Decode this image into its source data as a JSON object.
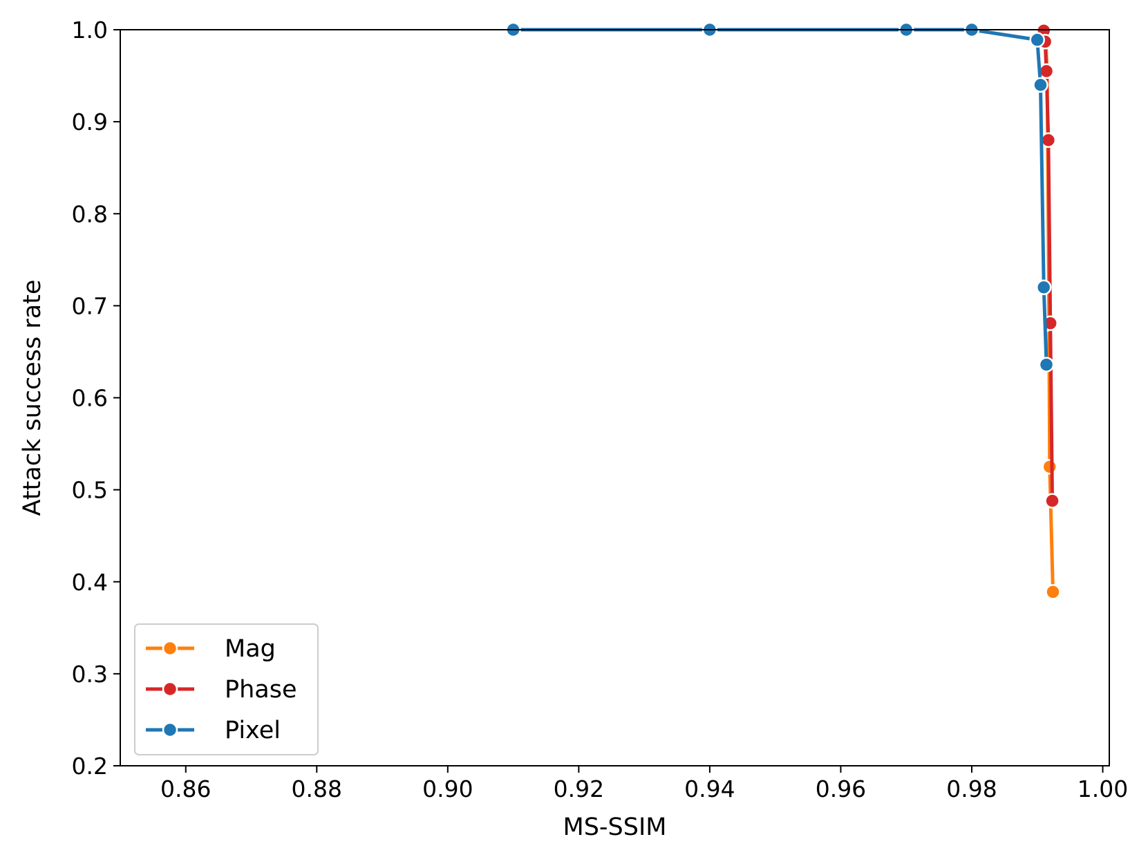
{
  "chart_data": {
    "type": "line",
    "title": "",
    "xlabel": "MS-SSIM",
    "ylabel": "Attack success rate",
    "xlim": [
      0.85,
      1.001
    ],
    "ylim": [
      0.2,
      1.0
    ],
    "xticks": [
      0.86,
      0.88,
      0.9,
      0.92,
      0.94,
      0.96,
      0.98,
      1.0
    ],
    "xtick_labels": [
      "0.86",
      "0.88",
      "0.90",
      "0.92",
      "0.94",
      "0.96",
      "0.98",
      "1.00"
    ],
    "yticks": [
      0.2,
      0.3,
      0.4,
      0.5,
      0.6,
      0.7,
      0.8,
      0.9,
      1.0
    ],
    "ytick_labels": [
      "0.2",
      "0.3",
      "0.4",
      "0.5",
      "0.6",
      "0.7",
      "0.8",
      "0.9",
      "1.0"
    ],
    "grid": false,
    "legend": "lower-left",
    "series": [
      {
        "name": "Mag",
        "color": "#ff7f0e",
        "points": [
          [
            0.991,
            0.999
          ],
          [
            0.9913,
            0.988
          ],
          [
            0.9915,
            0.955
          ],
          [
            0.9916,
            0.88
          ],
          [
            0.9918,
            0.68
          ],
          [
            0.9919,
            0.525
          ],
          [
            0.9924,
            0.389
          ]
        ]
      },
      {
        "name": "Phase",
        "color": "#d62728",
        "points": [
          [
            0.991,
            0.999
          ],
          [
            0.9912,
            0.987
          ],
          [
            0.9914,
            0.955
          ],
          [
            0.9917,
            0.88
          ],
          [
            0.992,
            0.681
          ],
          [
            0.9923,
            0.488
          ]
        ]
      },
      {
        "name": "Pixel",
        "color": "#1f77b4",
        "points": [
          [
            0.91,
            1.0
          ],
          [
            0.94,
            1.0
          ],
          [
            0.97,
            1.0
          ],
          [
            0.98,
            1.0
          ],
          [
            0.99,
            0.989
          ],
          [
            0.9905,
            0.94
          ],
          [
            0.991,
            0.72
          ],
          [
            0.9914,
            0.636
          ]
        ]
      }
    ]
  }
}
